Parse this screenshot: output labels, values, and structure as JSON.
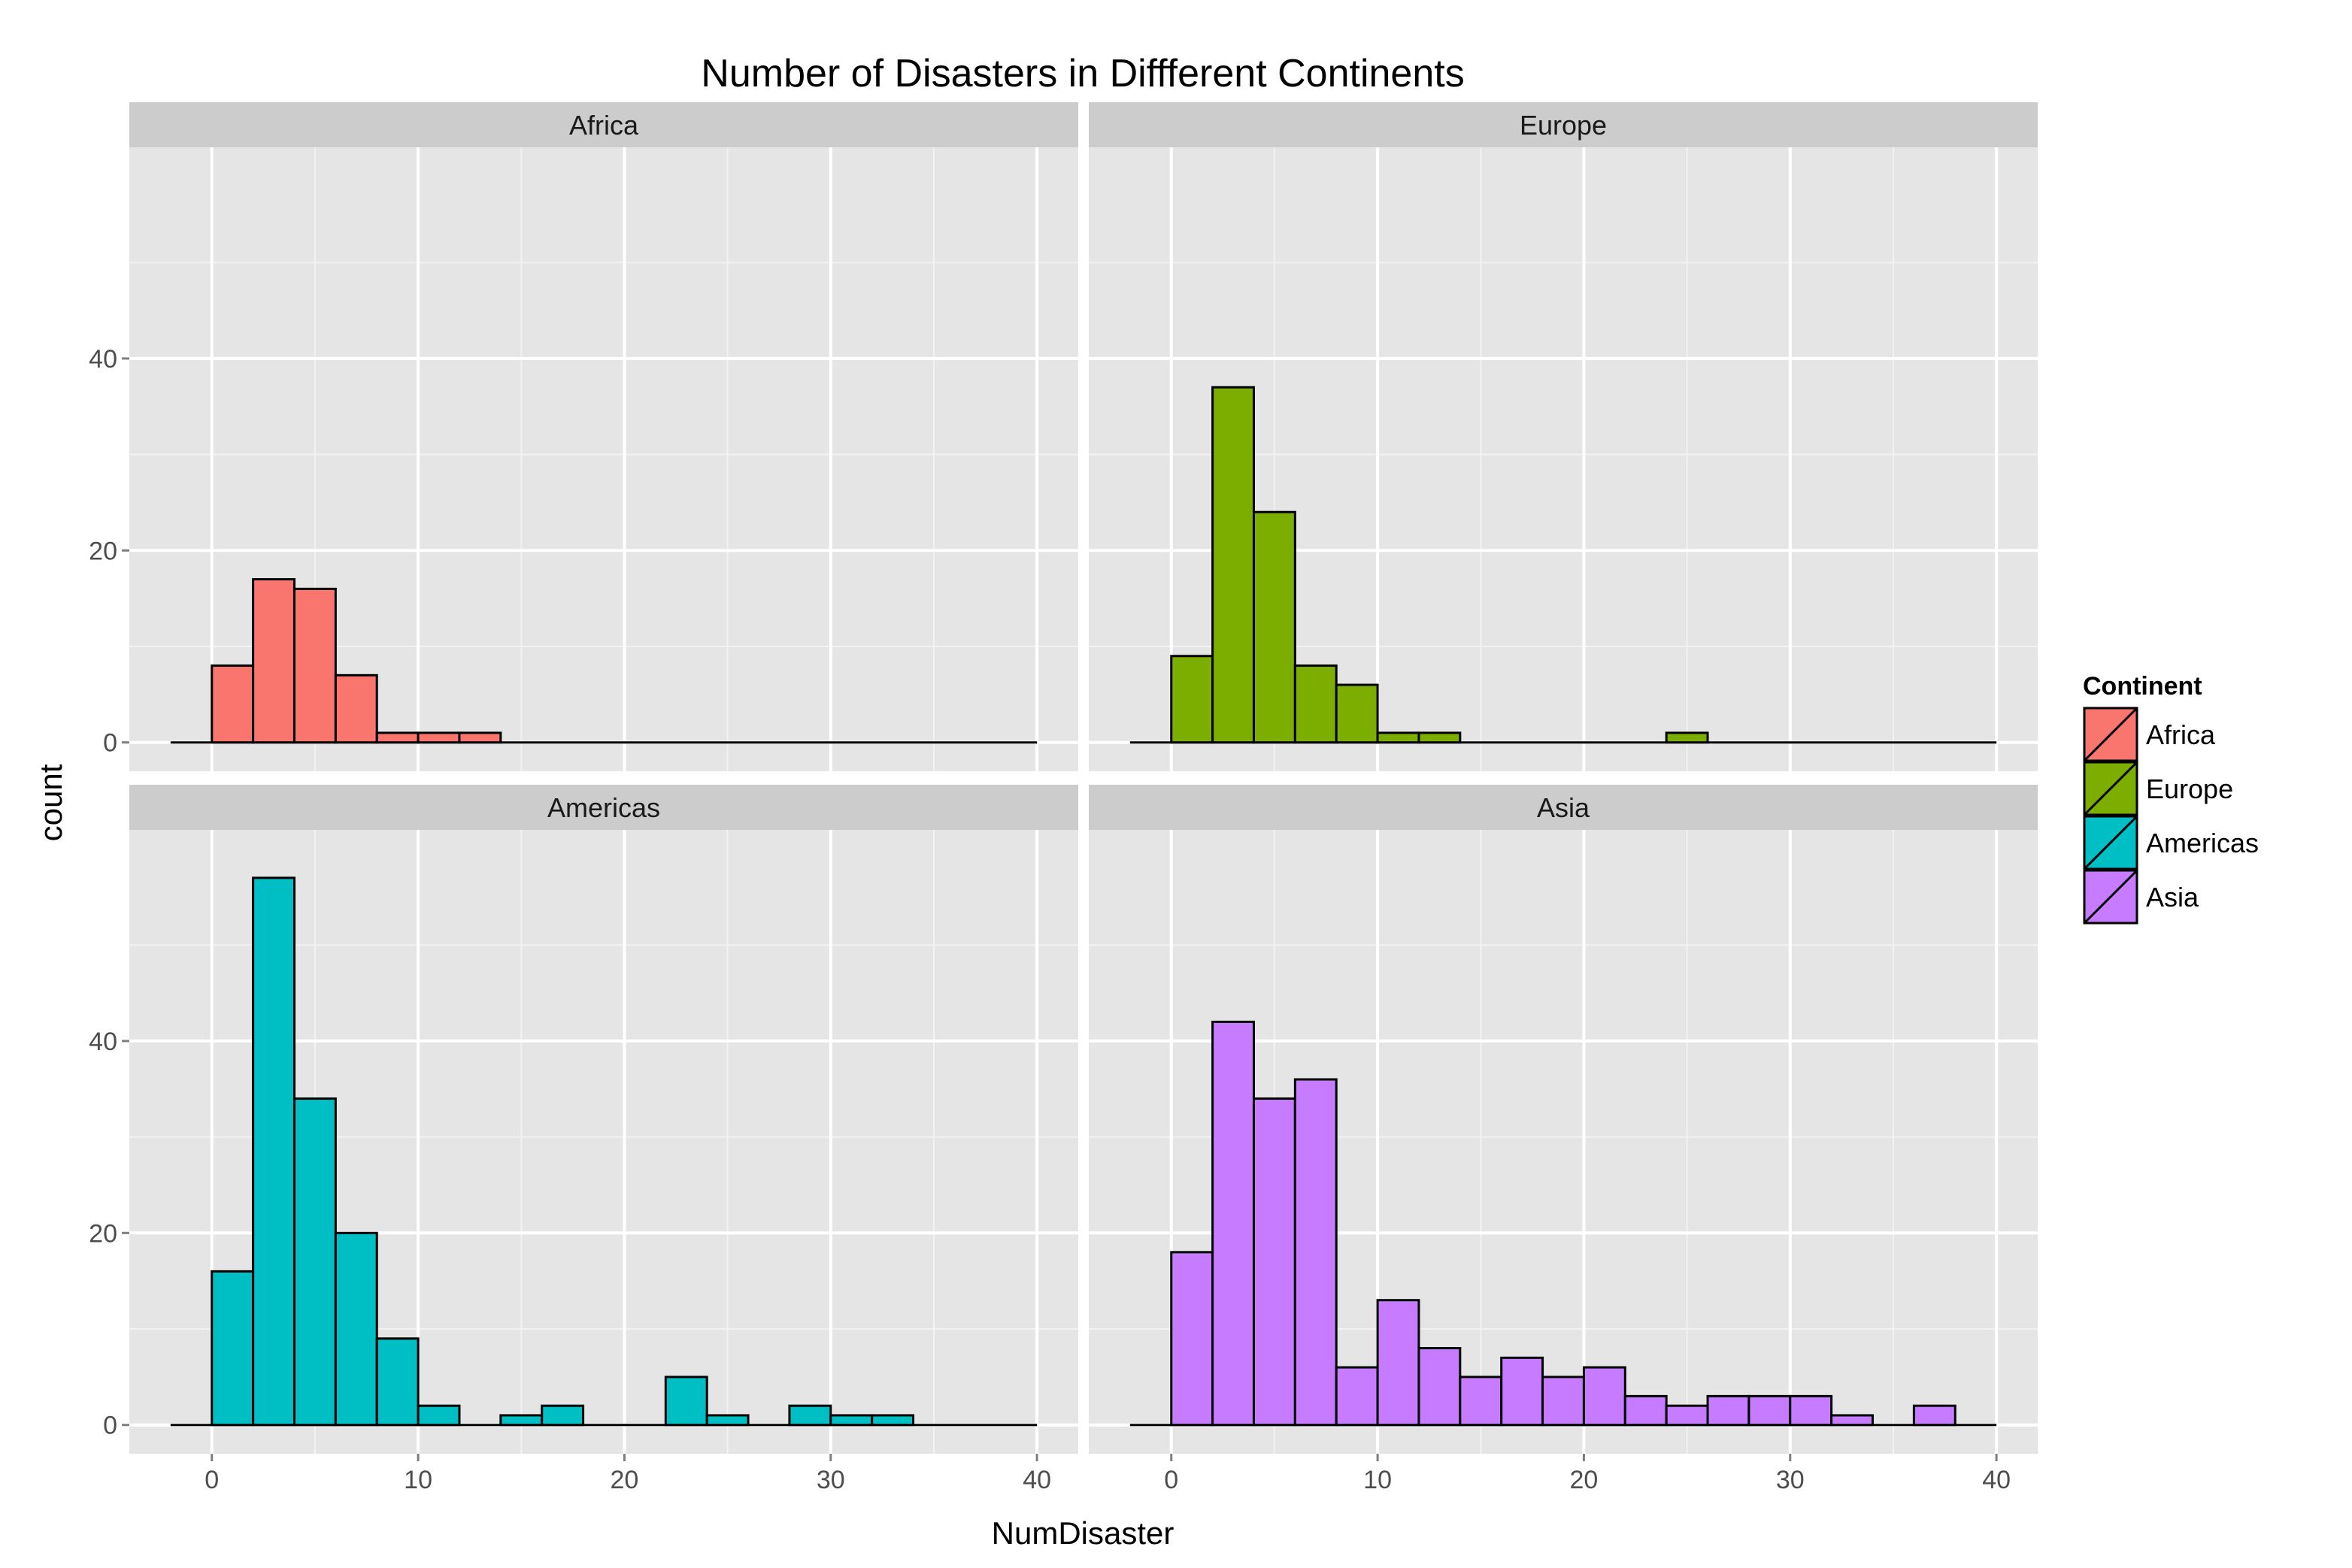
{
  "chart_data": {
    "type": "bar",
    "subtype": "faceted histogram",
    "title": "Number of Disasters in Diffferent Continents",
    "xlabel": "NumDisaster",
    "ylabel": "count",
    "xlim": [
      -4,
      42
    ],
    "ylim": [
      -3,
      62
    ],
    "x_ticks": [
      0,
      10,
      20,
      30,
      40
    ],
    "y_ticks": [
      0,
      20,
      40
    ],
    "bin_width": 2,
    "bin_starts": [
      0,
      2,
      4,
      6,
      8,
      10,
      12,
      14,
      16,
      18,
      20,
      22,
      24,
      26,
      28,
      30,
      32,
      34,
      36,
      38
    ],
    "grid": true,
    "background": "#e5e5e5",
    "legend": {
      "title": "Continent",
      "position": "right",
      "entries": [
        "Africa",
        "Europe",
        "Americas",
        "Asia"
      ]
    },
    "series": [
      {
        "name": "Africa",
        "color": "#f8766d",
        "values": [
          8,
          17,
          16,
          7,
          1,
          1,
          1,
          0,
          0,
          0,
          0,
          0,
          0,
          0,
          0,
          0,
          0,
          0,
          0,
          0
        ]
      },
      {
        "name": "Europe",
        "color": "#7cae00",
        "values": [
          9,
          37,
          24,
          8,
          6,
          1,
          1,
          0,
          0,
          0,
          0,
          0,
          1,
          0,
          0,
          0,
          0,
          0,
          0,
          0
        ]
      },
      {
        "name": "Americas",
        "color": "#00bfc4",
        "values": [
          16,
          57,
          34,
          20,
          9,
          2,
          0,
          1,
          2,
          0,
          0,
          5,
          1,
          0,
          2,
          1,
          1,
          0,
          0,
          0
        ]
      },
      {
        "name": "Asia",
        "color": "#c77cff",
        "values": [
          18,
          42,
          34,
          36,
          6,
          13,
          8,
          5,
          7,
          5,
          6,
          3,
          2,
          3,
          3,
          3,
          1,
          0,
          2,
          0
        ]
      }
    ]
  }
}
